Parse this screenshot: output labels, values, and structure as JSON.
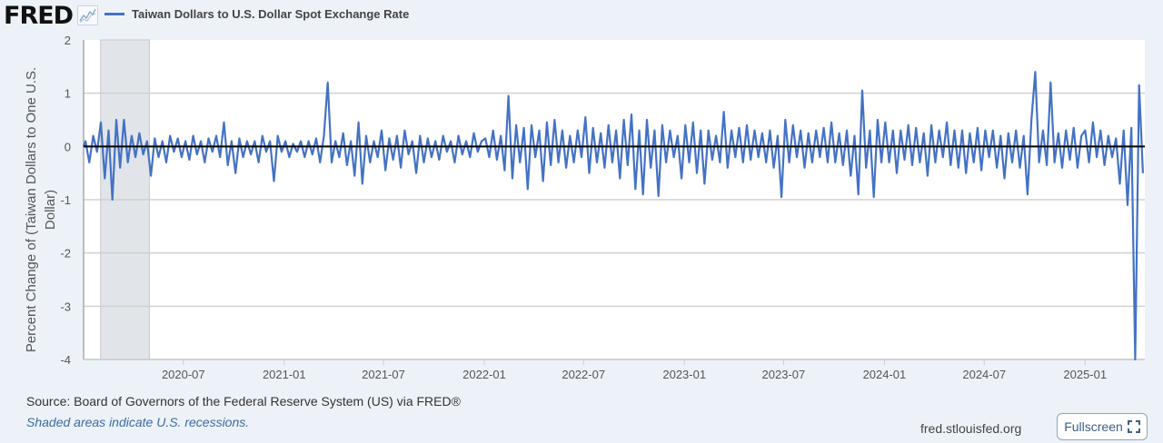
{
  "header": {
    "logo": "FRED",
    "graph_icon": "line-graph-icon",
    "legend_label": "Taiwan Dollars to U.S. Dollar Spot Exchange Rate",
    "series_color": "#4472c4"
  },
  "footer": {
    "source": "Source: Board of Governors of the Federal Reserve System (US) via FRED®",
    "note": "Shaded areas indicate U.S. recessions.",
    "site": "fred.stlouisfed.org",
    "fullscreen_label": "Fullscreen"
  },
  "chart_data": {
    "type": "line",
    "title": "Taiwan Dollars to U.S. Dollar Spot Exchange Rate",
    "ylabel": "Percent Change of (Taiwan Dollars to One U.S. Dollar)",
    "ylabel_lines": [
      "Percent Change of (Taiwan Dollars to One U.S.",
      "Dollar)"
    ],
    "xlabel": "",
    "ylim": [
      -4,
      2
    ],
    "yticks": [
      "2",
      "1",
      "0",
      "-1",
      "-2",
      "-3",
      "-4"
    ],
    "xlim": [
      "2020-01-01",
      "2025-04-20"
    ],
    "xticks": [
      "2020-07",
      "2021-01",
      "2021-07",
      "2022-01",
      "2022-07",
      "2023-01",
      "2023-07",
      "2024-01",
      "2024-07",
      "2025-01"
    ],
    "recession": [
      "2020-02-01",
      "2020-04-30"
    ],
    "frequency": "weekly",
    "grid": true,
    "values": [
      0.1,
      -0.3,
      0.2,
      -0.1,
      0.45,
      -0.6,
      0.3,
      -1.0,
      0.5,
      -0.4,
      0.5,
      -0.3,
      0.2,
      -0.2,
      0.25,
      -0.15,
      0.1,
      -0.55,
      0.15,
      -0.2,
      0.1,
      -0.3,
      0.2,
      -0.1,
      0.15,
      -0.2,
      0.1,
      -0.25,
      0.2,
      -0.15,
      0.1,
      -0.3,
      0.15,
      -0.1,
      0.2,
      -0.2,
      0.45,
      -0.35,
      0.1,
      -0.5,
      0.15,
      -0.2,
      0.1,
      -0.15,
      0.1,
      -0.3,
      0.2,
      -0.1,
      0.1,
      -0.65,
      0.2,
      -0.1,
      0.1,
      -0.2,
      0.05,
      -0.1,
      0.1,
      -0.2,
      0.1,
      -0.15,
      0.15,
      -0.3,
      0.2,
      1.2,
      -0.3,
      0.1,
      -0.2,
      0.25,
      -0.35,
      0.1,
      -0.55,
      0.45,
      -0.7,
      0.2,
      -0.3,
      0.1,
      -0.2,
      0.3,
      -0.45,
      0.15,
      -0.25,
      0.2,
      -0.4,
      0.3,
      -0.15,
      0.1,
      -0.5,
      0.2,
      -0.3,
      0.15,
      -0.2,
      0.1,
      -0.25,
      0.2,
      -0.1,
      0.1,
      -0.3,
      0.2,
      -0.15,
      0.1,
      -0.2,
      0.25,
      -0.1,
      0.1,
      0.15,
      -0.2,
      0.3,
      -0.25,
      0.2,
      -0.45,
      0.95,
      -0.6,
      0.4,
      -0.3,
      0.35,
      -0.8,
      0.4,
      -0.2,
      0.3,
      -0.65,
      0.45,
      -0.35,
      0.5,
      -0.3,
      0.3,
      -0.4,
      0.2,
      -0.3,
      0.3,
      -0.2,
      0.55,
      -0.5,
      0.35,
      -0.3,
      0.25,
      -0.4,
      0.4,
      -0.3,
      0.3,
      -0.6,
      0.5,
      -0.35,
      0.6,
      -0.8,
      0.3,
      -0.9,
      0.5,
      -0.4,
      0.3,
      -0.93,
      0.4,
      -0.3,
      0.3,
      -0.2,
      0.2,
      -0.6,
      0.4,
      -0.3,
      0.45,
      -0.5,
      0.3,
      -0.7,
      0.3,
      -0.25,
      0.2,
      -0.3,
      0.65,
      -0.4,
      0.3,
      -0.2,
      0.35,
      -0.3,
      0.4,
      -0.25,
      0.3,
      -0.2,
      0.25,
      -0.3,
      0.3,
      -0.4,
      0.2,
      -0.95,
      0.5,
      -0.3,
      0.4,
      -0.2,
      0.3,
      -0.4,
      0.25,
      -0.3,
      0.3,
      -0.2,
      0.35,
      -0.3,
      0.45,
      -0.3,
      0.25,
      -0.35,
      0.3,
      -0.55,
      0.2,
      -0.9,
      1.05,
      -0.4,
      0.3,
      -0.95,
      0.5,
      -0.3,
      0.45,
      -0.3,
      0.3,
      -0.5,
      0.3,
      -0.25,
      0.4,
      -0.35,
      0.35,
      -0.3,
      0.25,
      -0.55,
      0.4,
      -0.3,
      0.3,
      -0.2,
      0.45,
      -0.35,
      0.3,
      -0.4,
      0.3,
      -0.5,
      0.25,
      -0.3,
      0.35,
      -0.45,
      0.3,
      -0.2,
      0.3,
      -0.4,
      0.2,
      -0.6,
      0.25,
      -0.3,
      0.3,
      -0.4,
      0.2,
      -0.9,
      0.5,
      1.4,
      -0.3,
      0.3,
      -0.35,
      1.2,
      -0.3,
      0.25,
      -0.4,
      0.3,
      -0.25,
      0.35,
      -0.4,
      0.2,
      0.3,
      -0.3,
      0.45,
      -0.2,
      0.3,
      -0.35,
      0.2,
      -0.2,
      0.15,
      -0.7,
      0.3,
      -1.1,
      0.35,
      -4.0,
      1.15,
      -0.5
    ]
  }
}
